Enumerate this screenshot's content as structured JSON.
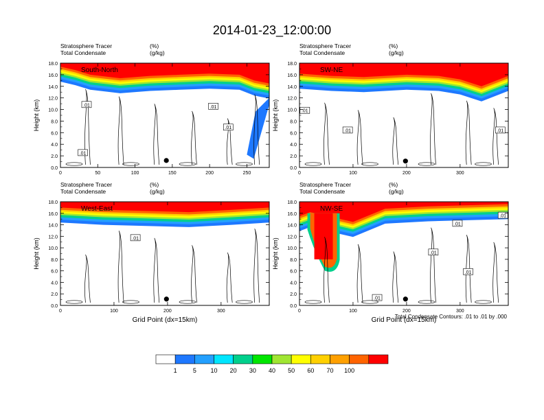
{
  "title": "2014-01-23_12:00:00",
  "colors": {
    "levels": [
      "#ffffff",
      "#1e78ff",
      "#23a0ff",
      "#00e6ff",
      "#00d08c",
      "#00e600",
      "#a0e632",
      "#ffff00",
      "#ffd000",
      "#ffa000",
      "#ff6400",
      "#ff0000"
    ]
  },
  "note": "Total Condensate Contours: .01 to .01 by .000",
  "chart_data": [
    {
      "type": "heatmap",
      "panel_label": "South-North",
      "left_string_1": "Stratosphere Tracer",
      "left_string_2": "Total Condensate",
      "right_string_1": "(%)",
      "right_string_2": "(g/kg)",
      "ylabel": "Height (km)",
      "xlabel": "",
      "xlim": [
        0,
        280
      ],
      "ylim": [
        0,
        18
      ],
      "xticks": [
        0,
        50,
        100,
        150,
        200,
        250
      ],
      "xtick_labels": [
        "0",
        "50",
        "100",
        "150",
        "200",
        "250"
      ],
      "yticks": [
        0,
        2,
        4,
        6,
        8,
        10,
        12,
        14,
        16,
        18
      ],
      "ytick_labels": [
        "0.0",
        "2.0",
        "4.0",
        "6.0",
        "8.0",
        "10.0",
        "12.0",
        "14.0",
        "16.0",
        "18.0"
      ],
      "tropopause_base_km": [
        [
          0,
          15.4
        ],
        [
          20,
          14.8
        ],
        [
          40,
          14.0
        ],
        [
          80,
          13.4
        ],
        [
          120,
          13.8
        ],
        [
          160,
          14.0
        ],
        [
          200,
          14.2
        ],
        [
          240,
          14.0
        ],
        [
          260,
          13.0
        ],
        [
          280,
          12.5
        ]
      ],
      "intrusions": [
        {
          "x": [
            250,
            280
          ],
          "y_top": 12.0,
          "y_bottom": 1.5
        }
      ],
      "contour_labels": [
        {
          "text": ".01",
          "x": 35,
          "y": 10.8
        },
        {
          "text": ".01",
          "x": 205,
          "y": 10.5
        },
        {
          "text": ".01",
          "x": 225,
          "y": 6.9
        },
        {
          "text": ".01",
          "x": 30,
          "y": 2.5
        }
      ],
      "marker": {
        "x": 142,
        "y": 1.2
      }
    },
    {
      "type": "heatmap",
      "panel_label": "SW-NE",
      "left_string_1": "Stratosphere Tracer",
      "left_string_2": "Total Condensate",
      "right_string_1": "(%)",
      "right_string_2": "(g/kg)",
      "ylabel": "Height (km)",
      "xlabel": "",
      "xlim": [
        0,
        390
      ],
      "ylim": [
        0,
        18
      ],
      "xticks": [
        0,
        100,
        200,
        300
      ],
      "xtick_labels": [
        "0",
        "100",
        "200",
        "300"
      ],
      "yticks": [
        0,
        2,
        4,
        6,
        8,
        10,
        12,
        14,
        16,
        18
      ],
      "ytick_labels": [
        "0.0",
        "2.0",
        "4.0",
        "6.0",
        "8.0",
        "10.0",
        "12.0",
        "14.0",
        "16.0",
        "18.0"
      ],
      "tropopause_base_km": [
        [
          0,
          14.2
        ],
        [
          60,
          13.8
        ],
        [
          120,
          13.6
        ],
        [
          200,
          14.0
        ],
        [
          260,
          13.8
        ],
        [
          300,
          13.2
        ],
        [
          340,
          12.0
        ],
        [
          390,
          13.8
        ]
      ],
      "intrusions": [],
      "contour_labels": [
        {
          "text": ".01",
          "x": 10,
          "y": 9.8
        },
        {
          "text": ".01",
          "x": 90,
          "y": 6.4
        },
        {
          "text": ".01",
          "x": 375,
          "y": 6.4
        }
      ],
      "marker": {
        "x": 198,
        "y": 1.1
      }
    },
    {
      "type": "heatmap",
      "panel_label": "West-East",
      "left_string_1": "Stratosphere Tracer",
      "left_string_2": "Total Condensate",
      "right_string_1": "(%)",
      "right_string_2": "(g/kg)",
      "ylabel": "Height (km)",
      "xlabel": "Grid Point (dx=15km)",
      "xlim": [
        0,
        390
      ],
      "ylim": [
        0,
        18
      ],
      "xticks": [
        0,
        100,
        200,
        300
      ],
      "xtick_labels": [
        "0",
        "100",
        "200",
        "300"
      ],
      "yticks": [
        0,
        2,
        4,
        6,
        8,
        10,
        12,
        14,
        16,
        18
      ],
      "ytick_labels": [
        "0.0",
        "2.0",
        "4.0",
        "6.0",
        "8.0",
        "10.0",
        "12.0",
        "14.0",
        "16.0",
        "18.0"
      ],
      "tropopause_base_km": [
        [
          0,
          15.0
        ],
        [
          80,
          14.6
        ],
        [
          160,
          14.4
        ],
        [
          240,
          14.2
        ],
        [
          320,
          14.6
        ],
        [
          390,
          15.0
        ]
      ],
      "intrusions": [],
      "contour_labels": [
        {
          "text": ".01",
          "x": 140,
          "y": 11.7
        }
      ],
      "marker": {
        "x": 198,
        "y": 1.1
      }
    },
    {
      "type": "heatmap",
      "panel_label": "NW-SE",
      "left_string_1": "Stratosphere Tracer",
      "left_string_2": "Total Condensate",
      "right_string_1": "(%)",
      "right_string_2": "(g/kg)",
      "ylabel": "Height (km)",
      "xlabel": "Grid Point (dx=15km)",
      "xlim": [
        0,
        390
      ],
      "ylim": [
        0,
        18
      ],
      "xticks": [
        0,
        100,
        200,
        300
      ],
      "xtick_labels": [
        "0",
        "100",
        "200",
        "300"
      ],
      "yticks": [
        0,
        2,
        4,
        6,
        8,
        10,
        12,
        14,
        16,
        18
      ],
      "ytick_labels": [
        "0.0",
        "2.0",
        "4.0",
        "6.0",
        "8.0",
        "10.0",
        "12.0",
        "14.0",
        "16.0",
        "18.0"
      ],
      "tropopause_base_km": [
        [
          0,
          13.5
        ],
        [
          20,
          14.2
        ],
        [
          100,
          12.5
        ],
        [
          160,
          14.8
        ],
        [
          240,
          15.2
        ],
        [
          320,
          15.4
        ],
        [
          390,
          15.6
        ]
      ],
      "intrusions": [
        {
          "x": [
            20,
            70
          ],
          "y_top": 16.0,
          "y_bottom": 6.0
        }
      ],
      "contour_labels": [
        {
          "text": ".01",
          "x": 295,
          "y": 14.2
        },
        {
          "text": ".01",
          "x": 380,
          "y": 15.6
        },
        {
          "text": ".01",
          "x": 250,
          "y": 9.2
        },
        {
          "text": ".01",
          "x": 315,
          "y": 5.8
        },
        {
          "text": ".01",
          "x": 145,
          "y": 1.3
        }
      ],
      "marker": {
        "x": 198,
        "y": 1.1
      }
    }
  ],
  "colorbar": {
    "labels": [
      "1",
      "5",
      "10",
      "20",
      "30",
      "40",
      "50",
      "60",
      "70",
      "100"
    ]
  }
}
